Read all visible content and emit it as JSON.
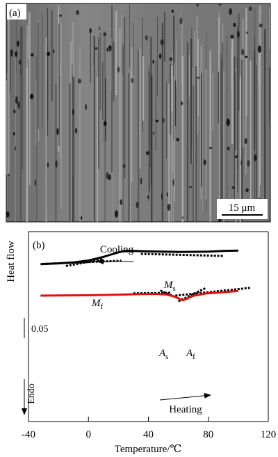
{
  "panel_a": {
    "label": "(a)",
    "scale_bar": "15 μm"
  },
  "panel_b": {
    "label": "(b)",
    "scale_label": "0.05"
  },
  "chart_data": {
    "type": "line",
    "xlabel": "Temperature/℃",
    "ylabel": "Heat flow",
    "xlim": [
      -40,
      120
    ],
    "x_ticks": [
      -40,
      0,
      40,
      80,
      120
    ],
    "x_tick_labels": [
      "-40",
      "0",
      "40",
      "80",
      "120"
    ],
    "endo_label": "Endo",
    "series": [
      {
        "name": "Cooling",
        "color": "#000000",
        "points": [
          [
            -32,
            0.171
          ],
          [
            -20,
            0.167
          ],
          [
            -10,
            0.162
          ],
          [
            0,
            0.152
          ],
          [
            5,
            0.143
          ],
          [
            10,
            0.133
          ],
          [
            15,
            0.121
          ],
          [
            20,
            0.109
          ],
          [
            24,
            0.102
          ],
          [
            30,
            0.102
          ],
          [
            40,
            0.104
          ],
          [
            60,
            0.107
          ],
          [
            80,
            0.105
          ],
          [
            90,
            0.102
          ],
          [
            100,
            0.1
          ]
        ]
      },
      {
        "name": "Heating",
        "color": "#e01010",
        "points": [
          [
            -32,
            0.337
          ],
          [
            -20,
            0.336
          ],
          [
            0,
            0.335
          ],
          [
            20,
            0.332
          ],
          [
            35,
            0.329
          ],
          [
            45,
            0.328
          ],
          [
            52,
            0.331
          ],
          [
            57,
            0.341
          ],
          [
            61,
            0.355
          ],
          [
            63,
            0.362
          ],
          [
            66,
            0.352
          ],
          [
            70,
            0.338
          ],
          [
            78,
            0.326
          ],
          [
            90,
            0.319
          ],
          [
            100,
            0.312
          ]
        ]
      }
    ],
    "annotations": [
      {
        "text": "Cooling",
        "arrow": "left"
      },
      {
        "text": "Heating",
        "arrow": "right"
      },
      {
        "text": "M",
        "subscript": "f"
      },
      {
        "text": "M",
        "subscript": "s"
      },
      {
        "text": "A",
        "subscript": "s"
      },
      {
        "text": "A",
        "subscript": "f"
      }
    ],
    "tangents": [
      {
        "for": "Mf",
        "from": [
          -15,
          0.181
        ],
        "to": [
          10,
          0.145
        ]
      },
      {
        "for": "Mf-base",
        "from": [
          -30,
          0.17
        ],
        "to": [
          22,
          0.153
        ]
      },
      {
        "for": "Ms",
        "from": [
          35,
          0.117
        ],
        "to": [
          90,
          0.128
        ]
      },
      {
        "for": "As-base",
        "from": [
          30,
          0.325
        ],
        "to": [
          55,
          0.322
        ]
      },
      {
        "for": "As",
        "from": [
          48,
          0.31
        ],
        "to": [
          62,
          0.358
        ]
      },
      {
        "for": "Af",
        "from": [
          60,
          0.367
        ],
        "to": [
          78,
          0.298
        ]
      },
      {
        "for": "Af-base",
        "from": [
          58,
          0.337
        ],
        "to": [
          108,
          0.296
        ]
      }
    ]
  },
  "colors": {
    "micro_bg": "#7a7a7a",
    "cooling": "#000000",
    "heating": "#e01010"
  }
}
